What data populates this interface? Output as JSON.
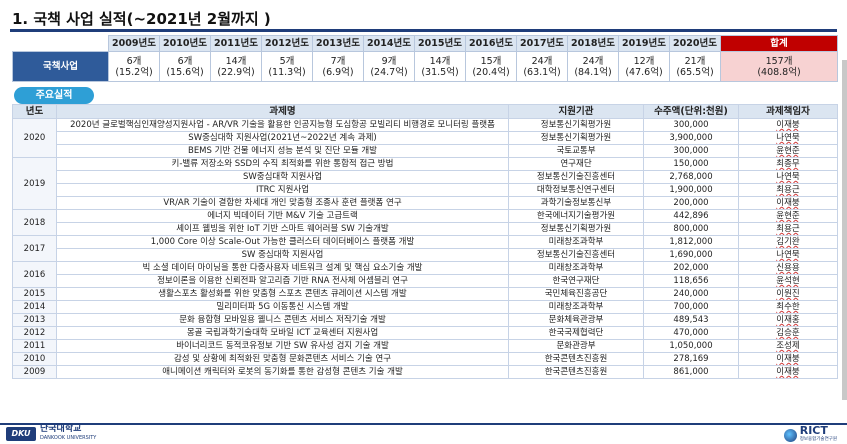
{
  "title": "1. 국책 사업 실적(~2021년 2월까지 )",
  "summary": {
    "years": [
      "2009년도",
      "2010년도",
      "2011년도",
      "2012년도",
      "2013년도",
      "2014년도",
      "2015년도",
      "2016년도",
      "2017년도",
      "2018년도",
      "2019년도",
      "2020년도"
    ],
    "total_header": "합계",
    "row_label": "국책사업",
    "counts": [
      "6개",
      "6개",
      "14개",
      "5개",
      "7개",
      "9개",
      "14개",
      "15개",
      "24개",
      "24개",
      "12개",
      "21개"
    ],
    "amounts": [
      "(15.2억)",
      "(15.6억)",
      "(22.9억)",
      "(11.3억)",
      "(6.9억)",
      "(24.7억)",
      "(31.5억)",
      "(20.4억)",
      "(63.1억)",
      "(84.1억)",
      "(47.6억)",
      "(65.5억)"
    ],
    "total_count": "157개",
    "total_amount": "(408.8억)"
  },
  "tab_label": "주요실적",
  "table": {
    "headers": {
      "year": "년도",
      "title": "과제명",
      "agency": "지원기관",
      "amount": "수주액(단위:천원)",
      "leader": "과제책임자"
    },
    "groups": [
      {
        "year": "2020",
        "rows": [
          {
            "title": "2020년 글로벌핵심인재양성지원사업 - AR/VR 기술을 활용한 인공지능형 도심항공 모빌리티 비행경로 모니터링 플랫폼",
            "agency": "정보통신기획평가원",
            "amount": "300,000",
            "leader": "이재붕"
          },
          {
            "title": "SW중심대학 지원사업(2021년~2022년 계속 과제)",
            "agency": "정보통신기획평가원",
            "amount": "3,900,000",
            "leader": "나연묵"
          },
          {
            "title": "BEMS 기반 건물 에너지 성능 분석 및 진단 모듈 개발",
            "agency": "국토교통부",
            "amount": "300,000",
            "leader": "윤현준"
          }
        ]
      },
      {
        "year": "2019",
        "rows": [
          {
            "title": "키-밸류 저장소와 SSD의 수직 최적화를 위한 통합적 접근 방법",
            "agency": "연구재단",
            "amount": "150,000",
            "leader": "최종무"
          },
          {
            "title": "SW중심대학 지원사업",
            "agency": "정보통신기술진흥센터",
            "amount": "2,768,000",
            "leader": "나연묵"
          },
          {
            "title": "ITRC 지원사업",
            "agency": "대학정보통신연구센터",
            "amount": "1,900,000",
            "leader": "최용근"
          },
          {
            "title": "VR/AR 기술이 결합한 차세대 개인 맞춤형 조종사 훈련 플랫폼 연구",
            "agency": "과학기술정보통신부",
            "amount": "200,000",
            "leader": "이재붕"
          }
        ]
      },
      {
        "year": "2018",
        "rows": [
          {
            "title": "에너지 빅데이터 기반 M&V 기술 고급트랙",
            "agency": "한국에너지기술평가원",
            "amount": "442,896",
            "leader": "윤현준"
          },
          {
            "title": "셰이프 웰빙을 위한 IoT 기반 스마트 웨어러블 SW 기술개발",
            "agency": "정보통신기획평가원",
            "amount": "800,000",
            "leader": "최용근"
          }
        ]
      },
      {
        "year": "2017",
        "rows": [
          {
            "title": "1,000 Core 이상 Scale-Out 가능한 클러스터 데이터베이스 플랫폼 개발",
            "agency": "미래창조과학부",
            "amount": "1,812,000",
            "leader": "김기완"
          },
          {
            "title": "SW 중심대학 지원사업",
            "agency": "정보통신기술진흥센터",
            "amount": "1,690,000",
            "leader": "나연묵"
          }
        ]
      },
      {
        "year": "2016",
        "rows": [
          {
            "title": "빅 소셜 데이터 마이닝을 통한 다중사용자 네트워크 설계 및 핵심 요소기술 개발",
            "agency": "미래창조과학부",
            "amount": "202,000",
            "leader": "신용용"
          },
          {
            "title": "정보이론을 이용한 신뢰전파 알고리즘 기반 RNA 전사체 어셈블리 연구",
            "agency": "한국연구재단",
            "amount": "118,656",
            "leader": "윤석현"
          }
        ]
      },
      {
        "year": "2015",
        "rows": [
          {
            "title": "생활스포츠 활성화를 위한 맞춤형 스포츠 콘텐츠 큐레이션 시스템 개발",
            "agency": "국민체육진흥공단",
            "amount": "240,000",
            "leader": "이원진"
          }
        ]
      },
      {
        "year": "2014",
        "rows": [
          {
            "title": "밀리미터파 5G 이동통신 시스템 개발",
            "agency": "미래창조과학부",
            "amount": "700,000",
            "leader": "최수한"
          }
        ]
      },
      {
        "year": "2013",
        "rows": [
          {
            "title": "문화 융합형 모바일용 웰니스 콘텐츠 서비스 저작기술 개발",
            "agency": "문화체육관광부",
            "amount": "489,543",
            "leader": "이재홍"
          }
        ]
      },
      {
        "year": "2012",
        "rows": [
          {
            "title": "몽골 국립과학기술대학 모바일 ICT 교육센터 지원사업",
            "agency": "한국국제협력단",
            "amount": "470,000",
            "leader": "김승훈"
          }
        ]
      },
      {
        "year": "2011",
        "rows": [
          {
            "title": "바이너리코드 동적코유정보 기반 SW 유사성 검지 기술 개발",
            "agency": "문화관광부",
            "amount": "1,050,000",
            "leader": "조성제"
          }
        ]
      },
      {
        "year": "2010",
        "rows": [
          {
            "title": "감성 및 상황에 최적화된 맞춤형 문화콘텐츠 서비스 기술 연구",
            "agency": "한국콘텐츠진흥원",
            "amount": "278,169",
            "leader": "이재붕"
          }
        ]
      },
      {
        "year": "2009",
        "rows": [
          {
            "title": "애니메이션 캐릭터와 로봇의 동기화를 통한 감성형 콘텐츠 기술 개발",
            "agency": "한국콘텐츠진흥원",
            "amount": "861,000",
            "leader": "이재붕"
          }
        ]
      }
    ]
  },
  "footer": {
    "logo_mark": "DKU",
    "logo_korean": "단국대학교",
    "logo_english": "DANKOOK UNIVERSITY",
    "ricti_name": "RICT",
    "ricti_sub": "정보융합기술연구원"
  }
}
